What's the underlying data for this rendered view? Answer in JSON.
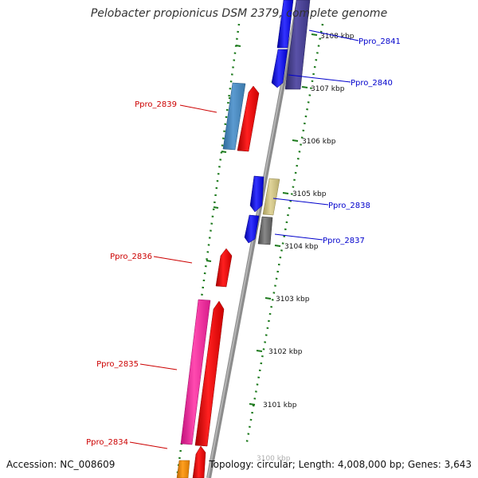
{
  "title": "Pelobacter propionicus DSM 2379, complete genome",
  "footer": {
    "accession": "Accession: NC_008609",
    "topology": "Topology: circular; Length: 4,008,000 bp; Genes: 3,643"
  },
  "colors": {
    "backbone": "#8c8c8c",
    "tick": "#1d7a1d",
    "forward_label": "#0000cc",
    "reverse_label": "#cc0000"
  },
  "ticks": [
    "3100 kbp",
    "3101 kbp",
    "3102 kbp",
    "3103 kbp",
    "3104 kbp",
    "3105 kbp",
    "3106 kbp",
    "3107 kbp",
    "3108 kbp"
  ],
  "genes": [
    {
      "id": "Ppro_2841",
      "strand": "forward",
      "label": "Ppro_2841"
    },
    {
      "id": "Ppro_2840",
      "strand": "forward",
      "label": "Ppro_2840"
    },
    {
      "id": "Ppro_2839",
      "strand": "reverse",
      "label": "Ppro_2839"
    },
    {
      "id": "Ppro_2838",
      "strand": "forward",
      "label": "Ppro_2838"
    },
    {
      "id": "Ppro_2837",
      "strand": "forward",
      "label": "Ppro_2837"
    },
    {
      "id": "Ppro_2836",
      "strand": "reverse",
      "label": "Ppro_2836"
    },
    {
      "id": "Ppro_2835",
      "strand": "reverse",
      "label": "Ppro_2835"
    },
    {
      "id": "Ppro_2834",
      "strand": "reverse",
      "label": "Ppro_2834"
    }
  ]
}
